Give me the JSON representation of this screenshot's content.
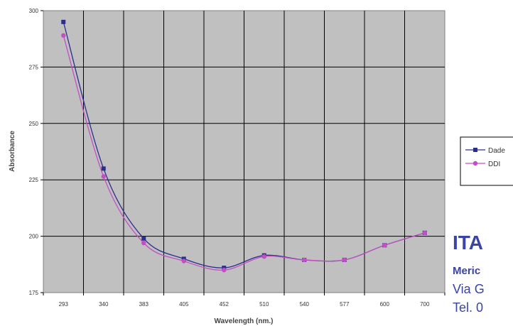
{
  "chart_data": {
    "type": "line",
    "title": "",
    "xlabel": "Wavelength (nm.)",
    "ylabel": "Absorbance",
    "categories": [
      "293",
      "340",
      "383",
      "405",
      "452",
      "510",
      "540",
      "577",
      "600",
      "700"
    ],
    "ylim": [
      175,
      300
    ],
    "yticks": [
      175,
      200,
      225,
      250,
      275,
      300
    ],
    "grid": true,
    "legend_position": "right",
    "series": [
      {
        "name": "Dade",
        "values": [
          295,
          230,
          199,
          190,
          186,
          191.5,
          189.5,
          189.5,
          196,
          201.5
        ],
        "color": "#2b2f8c",
        "marker": "square"
      },
      {
        "name": "DDI",
        "values": [
          289,
          226.5,
          197,
          189,
          185,
          191,
          189.5,
          189.5,
          196,
          201.5
        ],
        "color": "#c44fc4",
        "marker": "circle"
      }
    ]
  },
  "company": {
    "name": "ITA",
    "subtitle": "Meric",
    "address": "Via G",
    "tel": "Tel. 0"
  }
}
